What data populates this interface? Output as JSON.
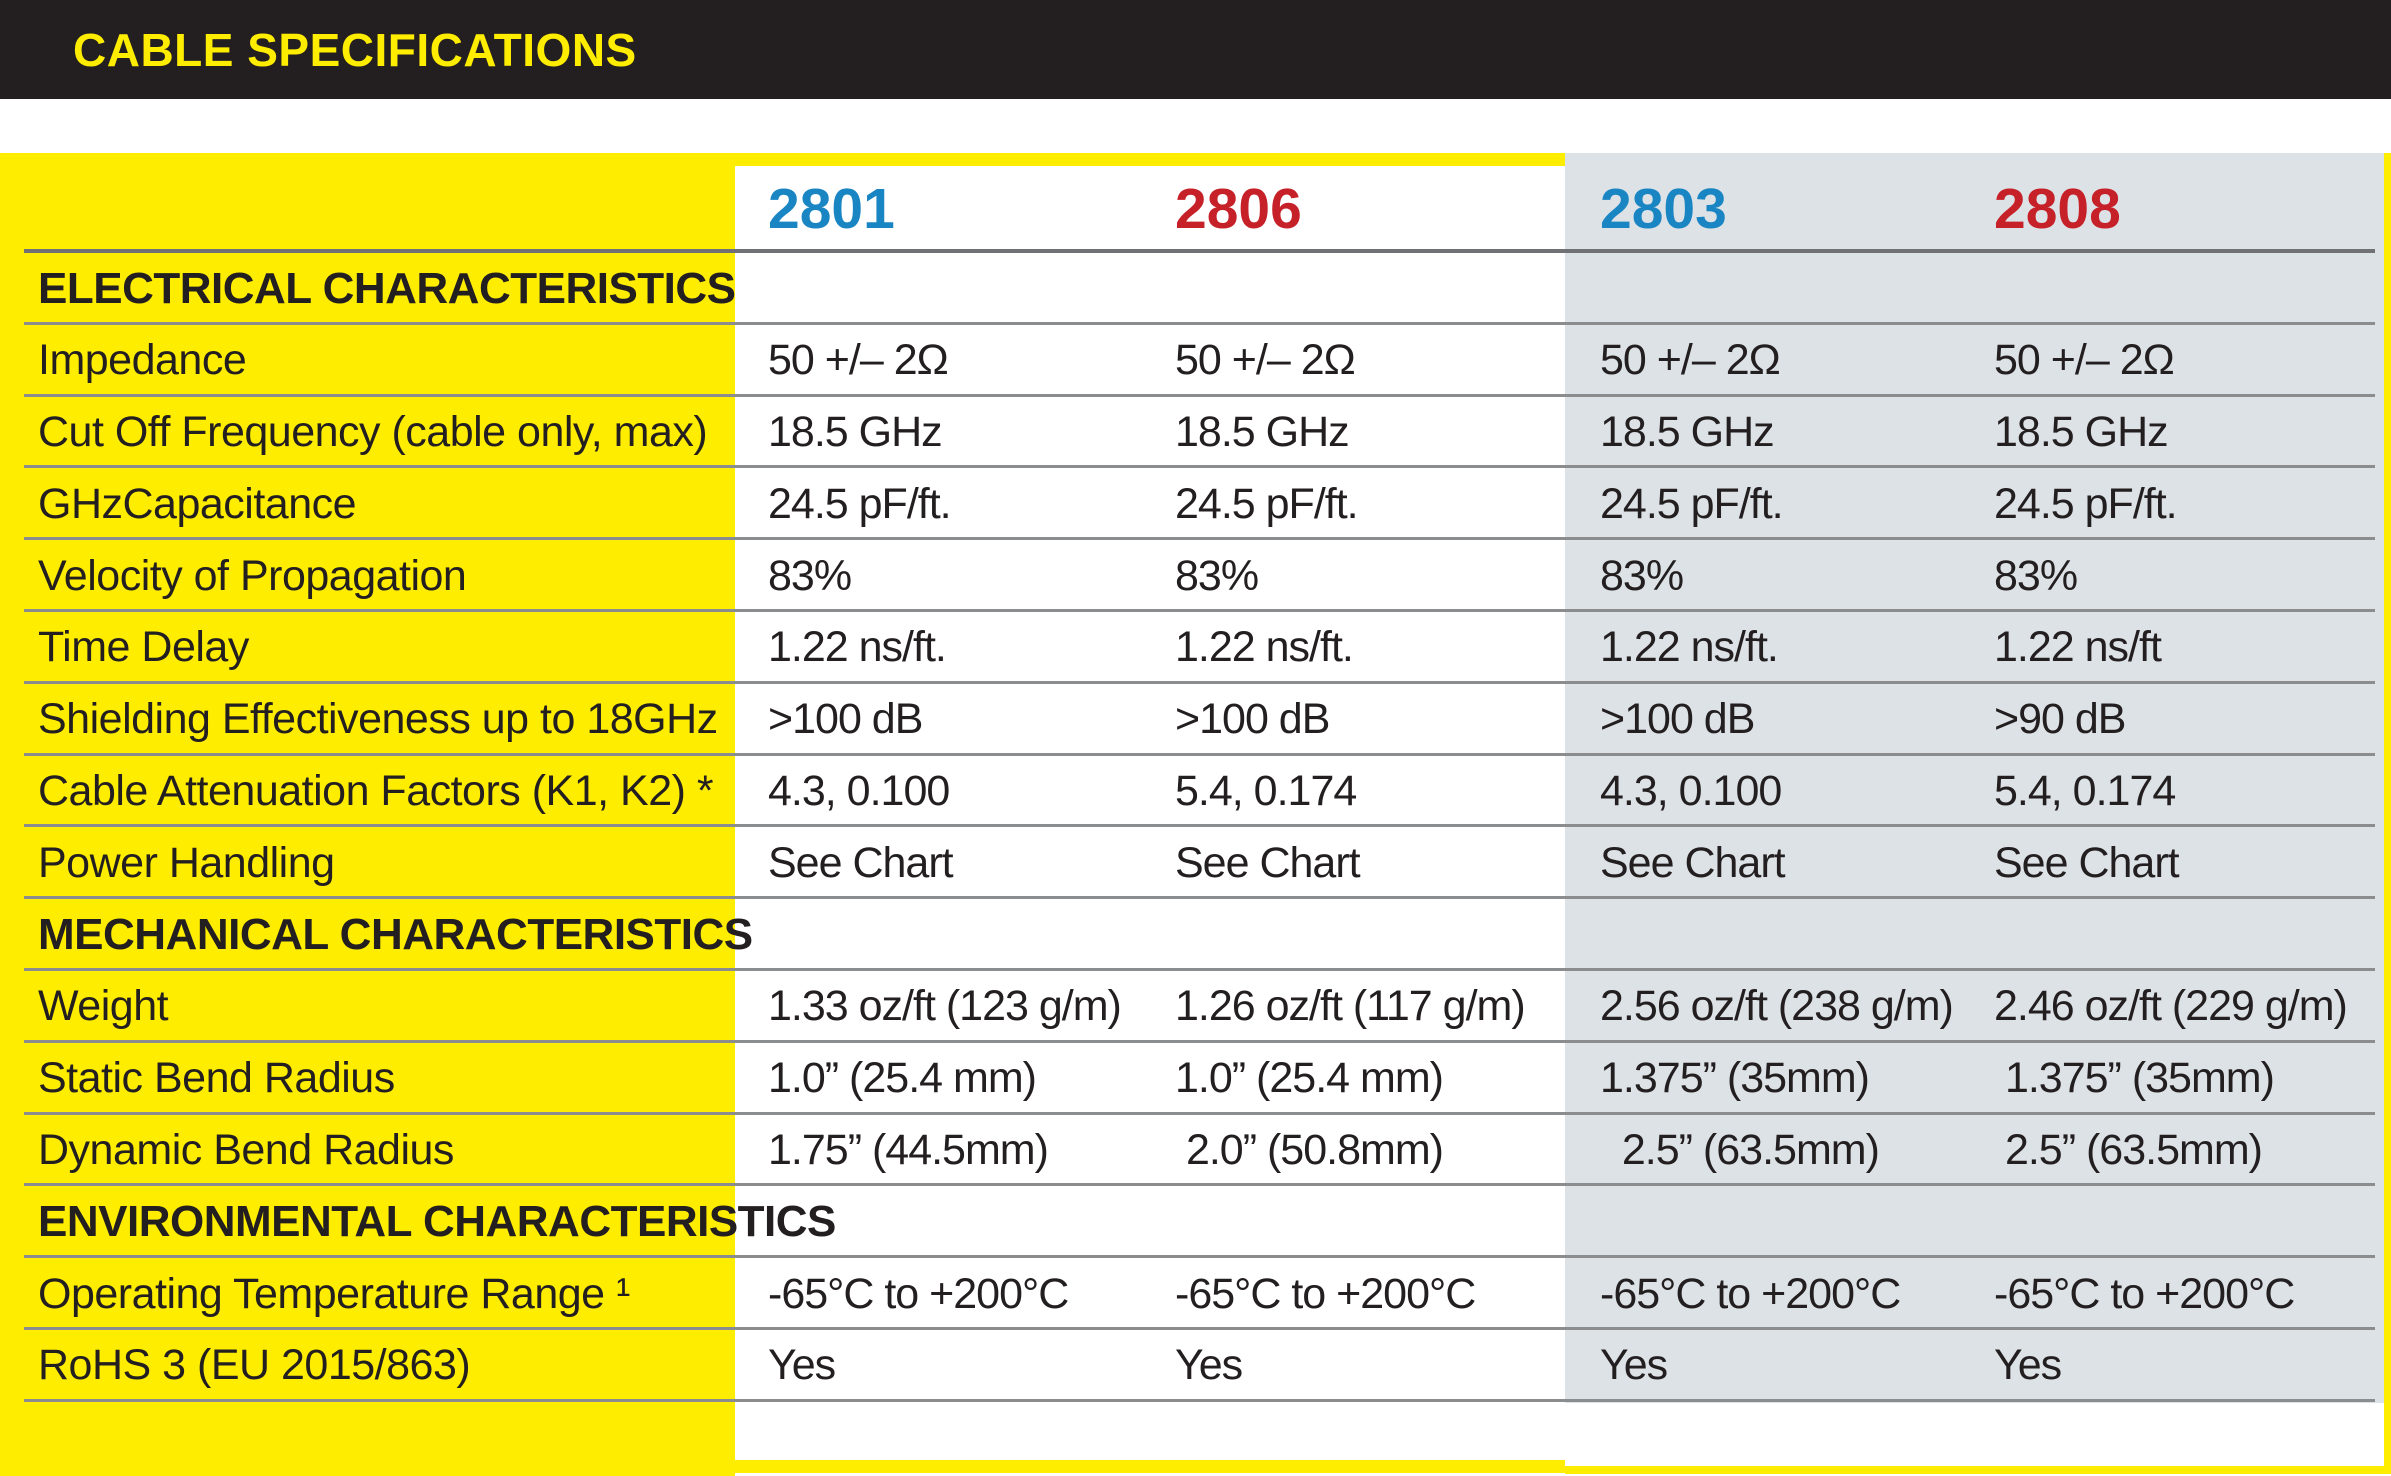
{
  "title": "CABLE SPECIFICATIONS",
  "colors": {
    "yellow": "#ffed00",
    "dark": "#231f20",
    "blue": "#1a85c3",
    "red": "#c62129",
    "panel": "#dde2e6",
    "line": "#8a8c8e",
    "line_strong": "#6f7174",
    "text": "#231f20"
  },
  "table": {
    "columns": [
      {
        "id": "2801",
        "color": "blue"
      },
      {
        "id": "2806",
        "color": "red"
      },
      {
        "id": "2803",
        "color": "blue"
      },
      {
        "id": "2808",
        "color": "red"
      }
    ],
    "rows": [
      {
        "type": "section",
        "label": "ELECTRICAL CHARACTERISTICS"
      },
      {
        "type": "data",
        "label": "Impedance",
        "values": [
          "50 +/– 2Ω",
          "50 +/– 2Ω",
          "50 +/– 2Ω",
          "50 +/– 2Ω"
        ]
      },
      {
        "type": "data",
        "label": "Cut Off Frequency (cable only, max)",
        "values": [
          "18.5 GHz",
          "18.5 GHz",
          "18.5 GHz",
          "18.5 GHz"
        ]
      },
      {
        "type": "data",
        "label": "GHzCapacitance",
        "values": [
          "24.5 pF/ft.",
          "24.5 pF/ft.",
          "24.5 pF/ft.",
          "24.5 pF/ft."
        ]
      },
      {
        "type": "data",
        "label": "Velocity of Propagation",
        "values": [
          "83%",
          "83%",
          "83%",
          "83%"
        ]
      },
      {
        "type": "data",
        "label": "Time Delay",
        "values": [
          "1.22 ns/ft.",
          "1.22 ns/ft.",
          "1.22 ns/ft.",
          "1.22 ns/ft"
        ]
      },
      {
        "type": "data",
        "label": "Shielding Effectiveness up to 18GHz",
        "values": [
          ">100 dB",
          ">100 dB",
          ">100 dB",
          ">90 dB"
        ]
      },
      {
        "type": "data",
        "label": "Cable Attenuation Factors (K1, K2) *",
        "values": [
          "4.3, 0.100",
          "5.4, 0.174",
          "4.3, 0.100",
          "5.4, 0.174"
        ]
      },
      {
        "type": "data",
        "label": "Power Handling",
        "values": [
          "See Chart",
          "See Chart",
          "See Chart",
          "See Chart"
        ]
      },
      {
        "type": "section",
        "label": "MECHANICAL CHARACTERISTICS"
      },
      {
        "type": "data",
        "label": "Weight",
        "values": [
          "1.33 oz/ft (123 g/m)",
          "1.26 oz/ft (117 g/m)",
          "2.56 oz/ft (238 g/m)",
          "2.46 oz/ft (229 g/m)"
        ]
      },
      {
        "type": "data",
        "label": "Static Bend Radius",
        "values": [
          "1.0” (25.4 mm)",
          "1.0” (25.4 mm)",
          "1.375” (35mm)",
          " 1.375” (35mm)"
        ]
      },
      {
        "type": "data",
        "label": "Dynamic Bend Radius",
        "values": [
          "1.75” (44.5mm)",
          " 2.0” (50.8mm)",
          "  2.5” (63.5mm)",
          " 2.5” (63.5mm)"
        ]
      },
      {
        "type": "section",
        "label": "ENVIRONMENTAL CHARACTERISTICS"
      },
      {
        "type": "data",
        "label": "Operating Temperature Range ¹",
        "values": [
          "-65°C to +200°C",
          "-65°C to +200°C",
          "-65°C to +200°C",
          "-65°C to +200°C"
        ]
      },
      {
        "type": "data",
        "label": "RoHS 3 (EU 2015/863)",
        "values": [
          "Yes",
          "Yes",
          "Yes",
          "Yes"
        ]
      }
    ]
  }
}
